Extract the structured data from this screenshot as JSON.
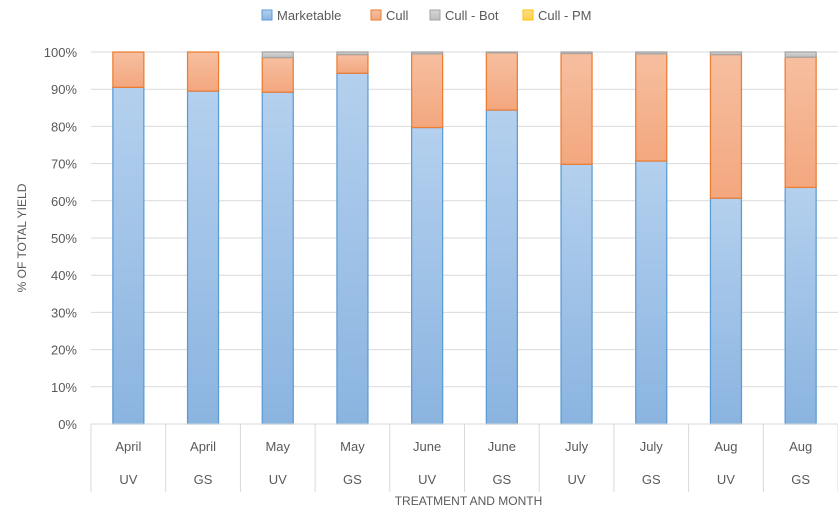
{
  "chart_data": {
    "type": "bar",
    "stacked": true,
    "percent": true,
    "xlabel": "TREATMENT AND MONTH",
    "ylabel": "% OF TOTAL YIELD",
    "ylim": [
      0,
      100
    ],
    "yticks": [
      "0%",
      "10%",
      "20%",
      "30%",
      "40%",
      "50%",
      "60%",
      "70%",
      "80%",
      "90%",
      "100%"
    ],
    "grid": true,
    "legend_position": "top",
    "categories": [
      {
        "month": "April",
        "treatment": "UV"
      },
      {
        "month": "April",
        "treatment": "GS"
      },
      {
        "month": "May",
        "treatment": "UV"
      },
      {
        "month": "May",
        "treatment": "GS"
      },
      {
        "month": "June",
        "treatment": "UV"
      },
      {
        "month": "June",
        "treatment": "GS"
      },
      {
        "month": "July",
        "treatment": "UV"
      },
      {
        "month": "July",
        "treatment": "GS"
      },
      {
        "month": "Aug",
        "treatment": "UV"
      },
      {
        "month": "Aug",
        "treatment": "GS"
      }
    ],
    "series": [
      {
        "name": "Marketable",
        "color": "#9dc3e6",
        "stroke": "#5b9bd5",
        "values": [
          90.5,
          89.5,
          89.2,
          94.3,
          79.7,
          84.4,
          69.8,
          70.7,
          60.7,
          63.6
        ]
      },
      {
        "name": "Cull",
        "color": "#f4b183",
        "stroke": "#ed7d31",
        "values": [
          9.5,
          10.5,
          9.3,
          5.0,
          19.8,
          15.4,
          29.8,
          28.8,
          38.6,
          35.0
        ]
      },
      {
        "name": "Cull - Bot",
        "color": "#c9c9c9",
        "stroke": "#a5a5a5",
        "values": [
          0.0,
          0.0,
          1.5,
          0.7,
          0.5,
          0.2,
          0.4,
          0.5,
          0.7,
          1.4
        ]
      },
      {
        "name": "Cull - PM",
        "color": "#ffd966",
        "stroke": "#ffc000",
        "values": [
          0,
          0,
          0,
          0,
          0,
          0,
          0,
          0,
          0,
          0
        ]
      }
    ]
  }
}
